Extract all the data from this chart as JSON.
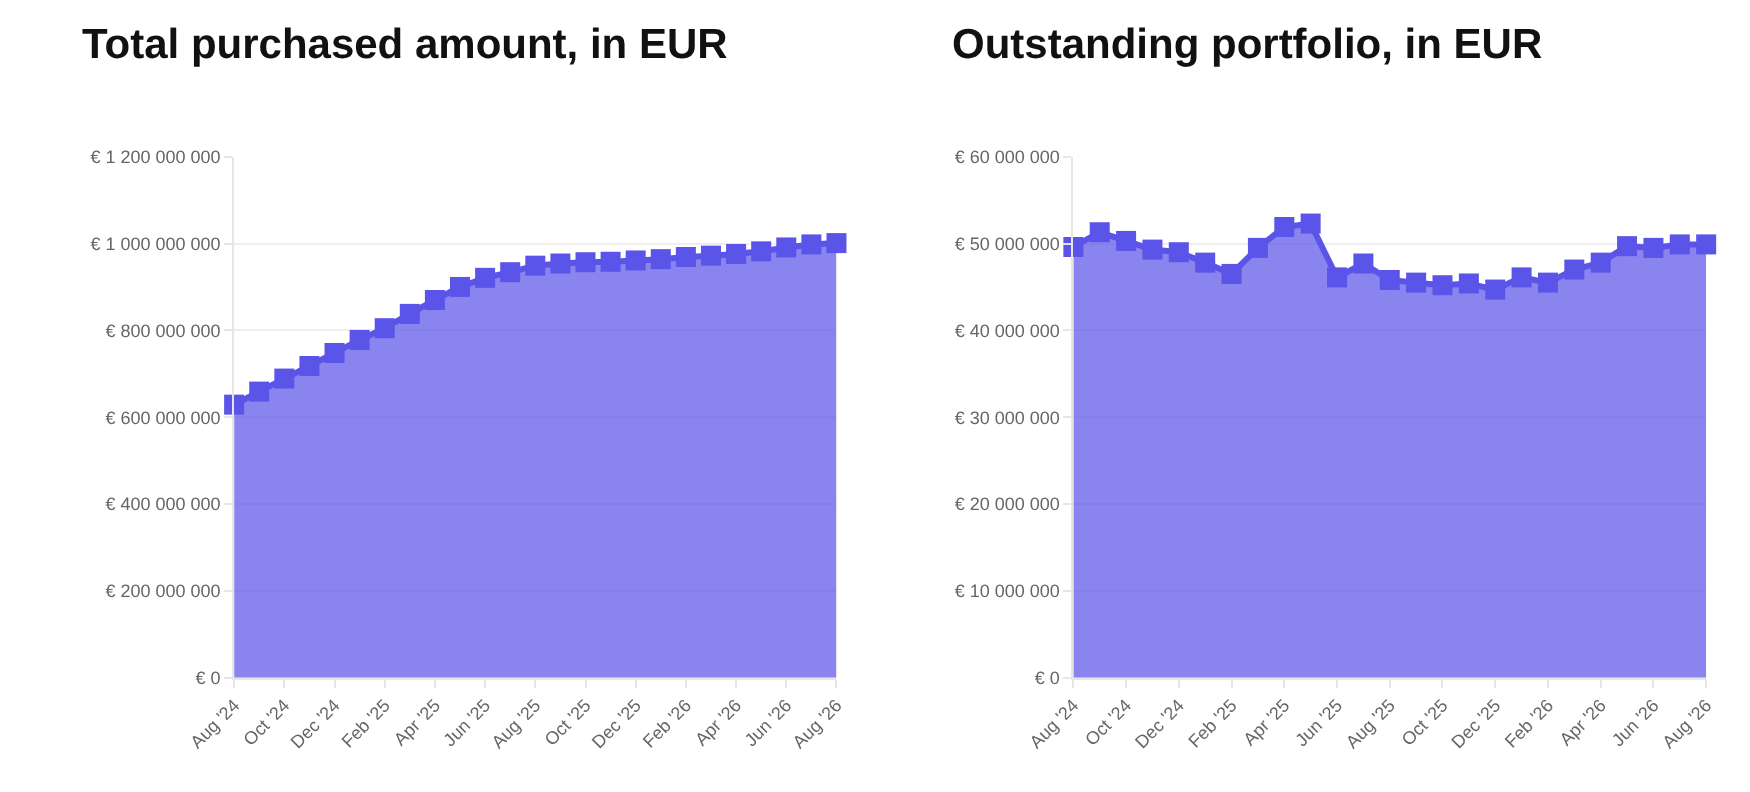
{
  "chart_data": [
    {
      "type": "area",
      "title": "Total purchased amount, in EUR",
      "categories": [
        "Aug '24",
        null,
        "Oct '24",
        null,
        "Dec '24",
        null,
        "Feb '25",
        null,
        "Apr '25",
        null,
        "Jun '25",
        null,
        "Aug '25",
        null,
        "Oct '25",
        null,
        "Dec '25",
        null,
        "Feb '26",
        null,
        "Apr '26",
        null,
        "Jun '26",
        null,
        "Aug '26"
      ],
      "series": [
        {
          "color": "#5b54e8",
          "values": [
            629000000,
            659000000,
            689000000,
            718000000,
            748000000,
            778000000,
            805000000,
            838000000,
            870000000,
            900000000,
            921000000,
            934000000,
            949000000,
            954000000,
            957000000,
            958000000,
            961000000,
            964000000,
            969000000,
            972000000,
            976000000,
            982000000,
            991000000,
            998000000,
            1001000000
          ]
        }
      ],
      "ylim": [
        0,
        1200000000
      ],
      "yticks": [
        {
          "value": 0,
          "label": "€ 0"
        },
        {
          "value": 200000000,
          "label": "€ 200 000 000"
        },
        {
          "value": 400000000,
          "label": "€ 400 000 000"
        },
        {
          "value": 600000000,
          "label": "€ 600 000 000"
        },
        {
          "value": 800000000,
          "label": "€ 800 000 000"
        },
        {
          "value": 1000000000,
          "label": "€ 1 000 000 000"
        },
        {
          "value": 1200000000,
          "label": "€ 1 200 000 000"
        }
      ],
      "grid": "y",
      "marker": "square",
      "line_style": "solid"
    },
    {
      "type": "area",
      "title": "Outstanding portfolio, in EUR",
      "categories": [
        "Aug '24",
        null,
        "Oct '24",
        null,
        "Dec '24",
        null,
        "Feb '25",
        null,
        "Apr '25",
        null,
        "Jun '25",
        null,
        "Aug '25",
        null,
        "Oct '25",
        null,
        "Dec '25",
        null,
        "Feb '26",
        null,
        "Apr '26",
        null,
        "Jun '26",
        null,
        "Aug '26"
      ],
      "series": [
        {
          "color": "#5b54e8",
          "values": [
            49600000,
            51300000,
            50300000,
            49300000,
            49000000,
            47800000,
            46500000,
            49500000,
            51900000,
            52300000,
            46100000,
            47700000,
            45800000,
            45500000,
            45200000,
            45400000,
            44700000,
            46100000,
            45500000,
            47000000,
            47800000,
            49700000,
            49500000,
            49900000,
            49900000
          ]
        }
      ],
      "ylim": [
        0,
        60000000
      ],
      "yticks": [
        {
          "value": 0,
          "label": "€ 0"
        },
        {
          "value": 10000000,
          "label": "€ 10 000 000"
        },
        {
          "value": 20000000,
          "label": "€ 20 000 000"
        },
        {
          "value": 30000000,
          "label": "€ 30 000 000"
        },
        {
          "value": 40000000,
          "label": "€ 40 000 000"
        },
        {
          "value": 50000000,
          "label": "€ 50 000 000"
        },
        {
          "value": 60000000,
          "label": "€ 60 000 000"
        }
      ],
      "grid": "y",
      "marker": "square",
      "line_style": "solid"
    }
  ]
}
